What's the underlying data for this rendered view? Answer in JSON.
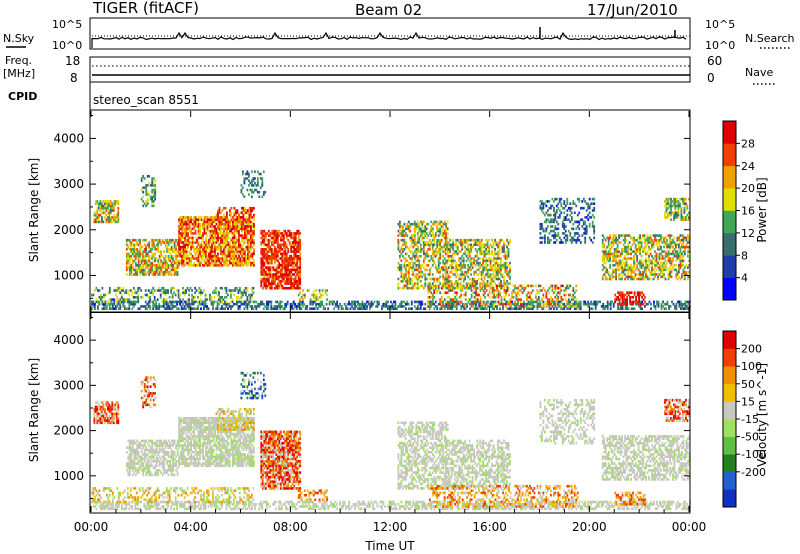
{
  "header": {
    "radar": "TIGER (fitACF)",
    "beam": "Beam 02",
    "date": "17/Jun/2010"
  },
  "top_panels": {
    "nsky_label": "N.Sky",
    "nsearch_label": "N.Search",
    "log_ticks_left": [
      "10^5",
      "10^0"
    ],
    "log_ticks_right": [
      "10^5",
      "10^0"
    ],
    "freq_label_line1": "Freq.",
    "freq_label_line2": "[MHz]",
    "freq_ticks": [
      "18",
      "8"
    ],
    "nave_ticks": [
      "60",
      "0"
    ],
    "nave_label": "Nave",
    "cpid_label": "CPID",
    "cpid_value": "stereo_scan 8551"
  },
  "chart_data": [
    {
      "type": "heatmap",
      "name": "power",
      "ylabel": "Slant Range [km]",
      "yticks": [
        "1000",
        "2000",
        "3000",
        "4000"
      ],
      "ylim": [
        200,
        4600
      ],
      "xlim_hours": [
        0,
        24
      ],
      "colorbar": {
        "label": "Power [dB]",
        "ticks": [
          "4",
          "8",
          "12",
          "16",
          "20",
          "24",
          "28"
        ],
        "colors": [
          "#0000ff",
          "#1f3fa8",
          "#3a6e6e",
          "#3ea85a",
          "#e0e000",
          "#f0a000",
          "#f04000",
          "#e00000"
        ]
      }
    },
    {
      "type": "heatmap",
      "name": "velocity",
      "ylabel": "Slant Range [km]",
      "yticks": [
        "1000",
        "2000",
        "3000",
        "4000"
      ],
      "ylim": [
        200,
        4600
      ],
      "xlim_hours": [
        0,
        24
      ],
      "colorbar": {
        "label": "Velocity [m s^-1]",
        "ticks": [
          "200",
          "100",
          "50",
          "15",
          "-15",
          "-50",
          "-100",
          "-200"
        ],
        "colors": [
          "#1030c0",
          "#2060d0",
          "#208020",
          "#60c040",
          "#a0e060",
          "#c8c8c0",
          "#f0c000",
          "#f09000",
          "#f04000",
          "#e00000"
        ]
      }
    }
  ],
  "xaxis": {
    "ticks": [
      "00:00",
      "04:00",
      "08:00",
      "12:00",
      "16:00",
      "20:00",
      "00:00"
    ],
    "label": "Time UT"
  }
}
